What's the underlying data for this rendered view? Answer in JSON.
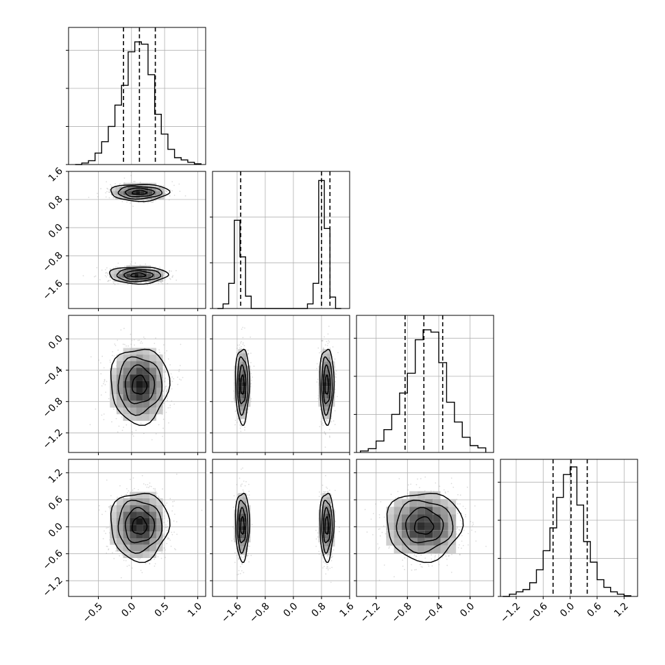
{
  "chart_data": {
    "type": "corner",
    "n_params": 4,
    "colors": {
      "line": "#000000",
      "grid": "#b0b0b0",
      "points": "#9a9a9a",
      "quantile_line": "#000000"
    },
    "grid": true,
    "params": [
      {
        "range": [
          -0.95,
          1.12
        ],
        "ticks": [
          -0.5,
          0.0,
          0.5,
          1.0
        ],
        "tick_labels": [
          "−0.5",
          "0.0",
          "0.5",
          "1.0"
        ]
      },
      {
        "range": [
          -2.3,
          1.6
        ],
        "ticks": [
          -1.6,
          -0.8,
          0.0,
          0.8,
          1.6
        ],
        "tick_labels": [
          "−1.6",
          "−0.8",
          "0.0",
          "0.8",
          "1.6"
        ]
      },
      {
        "range": [
          -1.45,
          0.3
        ],
        "ticks": [
          -1.2,
          -0.8,
          -0.4,
          0.0
        ],
        "tick_labels": [
          "−1.2",
          "−0.8",
          "−0.4",
          "0.0"
        ]
      },
      {
        "range": [
          -1.55,
          1.5
        ],
        "ticks": [
          -1.2,
          -0.6,
          0.0,
          0.6,
          1.2
        ],
        "tick_labels": [
          "−1.2",
          "−0.6",
          "0.0",
          "0.6",
          "1.2"
        ]
      }
    ],
    "histograms": [
      {
        "param": 0,
        "bin_edges": [
          -0.85,
          -0.75,
          -0.65,
          -0.55,
          -0.45,
          -0.35,
          -0.25,
          -0.15,
          -0.05,
          0.05,
          0.15,
          0.25,
          0.35,
          0.45,
          0.55,
          0.65,
          0.75,
          0.85,
          0.95,
          1.05
        ],
        "counts": [
          0,
          2,
          5,
          15,
          30,
          50,
          78,
          104,
          148,
          161,
          158,
          118,
          66,
          40,
          20,
          9,
          6,
          3,
          1
        ],
        "ymax": 180,
        "ygrid": [
          0,
          50,
          100,
          150
        ],
        "quantiles": [
          -0.12,
          0.12,
          0.36
        ]
      },
      {
        "param": 1,
        "bin_edges": [
          -2.16,
          -2.0,
          -1.84,
          -1.68,
          -1.52,
          -1.36,
          -1.2,
          -1.04,
          -0.88,
          -0.72,
          -0.56,
          -0.4,
          -0.24,
          -0.08,
          0.08,
          0.24,
          0.4,
          0.56,
          0.72,
          0.88,
          1.04,
          1.2,
          1.36
        ],
        "counts": [
          0,
          10,
          55,
          193,
          113,
          27,
          0,
          0,
          0,
          0,
          0,
          0,
          0,
          0,
          0,
          0,
          10,
          55,
          280,
          175,
          25,
          0
        ],
        "ymax": 300,
        "ygrid": [
          0,
          100,
          200
        ],
        "quantiles": [
          -1.5,
          0.8,
          1.04
        ]
      },
      {
        "param": 2,
        "bin_edges": [
          -1.4,
          -1.3,
          -1.2,
          -1.1,
          -1.0,
          -0.9,
          -0.8,
          -0.7,
          -0.6,
          -0.5,
          -0.4,
          -0.3,
          -0.2,
          -0.1,
          0.0,
          0.1,
          0.2
        ],
        "counts": [
          2,
          5,
          15,
          30,
          50,
          78,
          104,
          148,
          161,
          158,
          118,
          66,
          40,
          20,
          9,
          6
        ],
        "ymax": 180,
        "ygrid": [
          0,
          50,
          100,
          150
        ],
        "quantiles": [
          -0.83,
          -0.59,
          -0.35
        ]
      },
      {
        "param": 3,
        "bin_edges": [
          -1.5,
          -1.35,
          -1.2,
          -1.05,
          -0.9,
          -0.75,
          -0.6,
          -0.45,
          -0.3,
          -0.15,
          0.0,
          0.15,
          0.3,
          0.45,
          0.6,
          0.75,
          0.9,
          1.05,
          1.2,
          1.35
        ],
        "counts": [
          0,
          3,
          6,
          9,
          18,
          35,
          60,
          90,
          130,
          160,
          170,
          120,
          72,
          45,
          22,
          12,
          6,
          3,
          1
        ],
        "ymax": 180,
        "ygrid": [
          0,
          50,
          100,
          150
        ],
        "quantiles": [
          -0.38,
          0.02,
          0.38
        ]
      }
    ],
    "panels_2d": [
      {
        "x": 0,
        "y": 1,
        "clusters": [
          {
            "cx": 0.12,
            "cy": 1.0,
            "sx": 0.22,
            "sy": 0.12
          },
          {
            "cx": 0.1,
            "cy": -1.35,
            "sx": 0.22,
            "sy": 0.12
          }
        ]
      },
      {
        "x": 0,
        "y": 2,
        "clusters": [
          {
            "cx": 0.12,
            "cy": -0.59,
            "sx": 0.22,
            "sy": 0.24
          }
        ]
      },
      {
        "x": 1,
        "y": 2,
        "clusters": [
          {
            "cx": -1.45,
            "cy": -0.59,
            "sx": 0.1,
            "sy": 0.24
          },
          {
            "cx": 0.95,
            "cy": -0.59,
            "sx": 0.1,
            "sy": 0.24
          }
        ]
      },
      {
        "x": 0,
        "y": 3,
        "clusters": [
          {
            "cx": 0.12,
            "cy": 0.02,
            "sx": 0.22,
            "sy": 0.38
          }
        ]
      },
      {
        "x": 1,
        "y": 3,
        "clusters": [
          {
            "cx": -1.45,
            "cy": 0.02,
            "sx": 0.1,
            "sy": 0.38
          },
          {
            "cx": 0.95,
            "cy": 0.02,
            "sx": 0.1,
            "sy": 0.38
          }
        ]
      },
      {
        "x": 2,
        "y": 3,
        "clusters": [
          {
            "cx": -0.59,
            "cy": 0.02,
            "sx": 0.24,
            "sy": 0.38
          }
        ]
      }
    ],
    "contour_levels_sigma": [
      0.5,
      1.0,
      1.5,
      2.0
    ]
  }
}
